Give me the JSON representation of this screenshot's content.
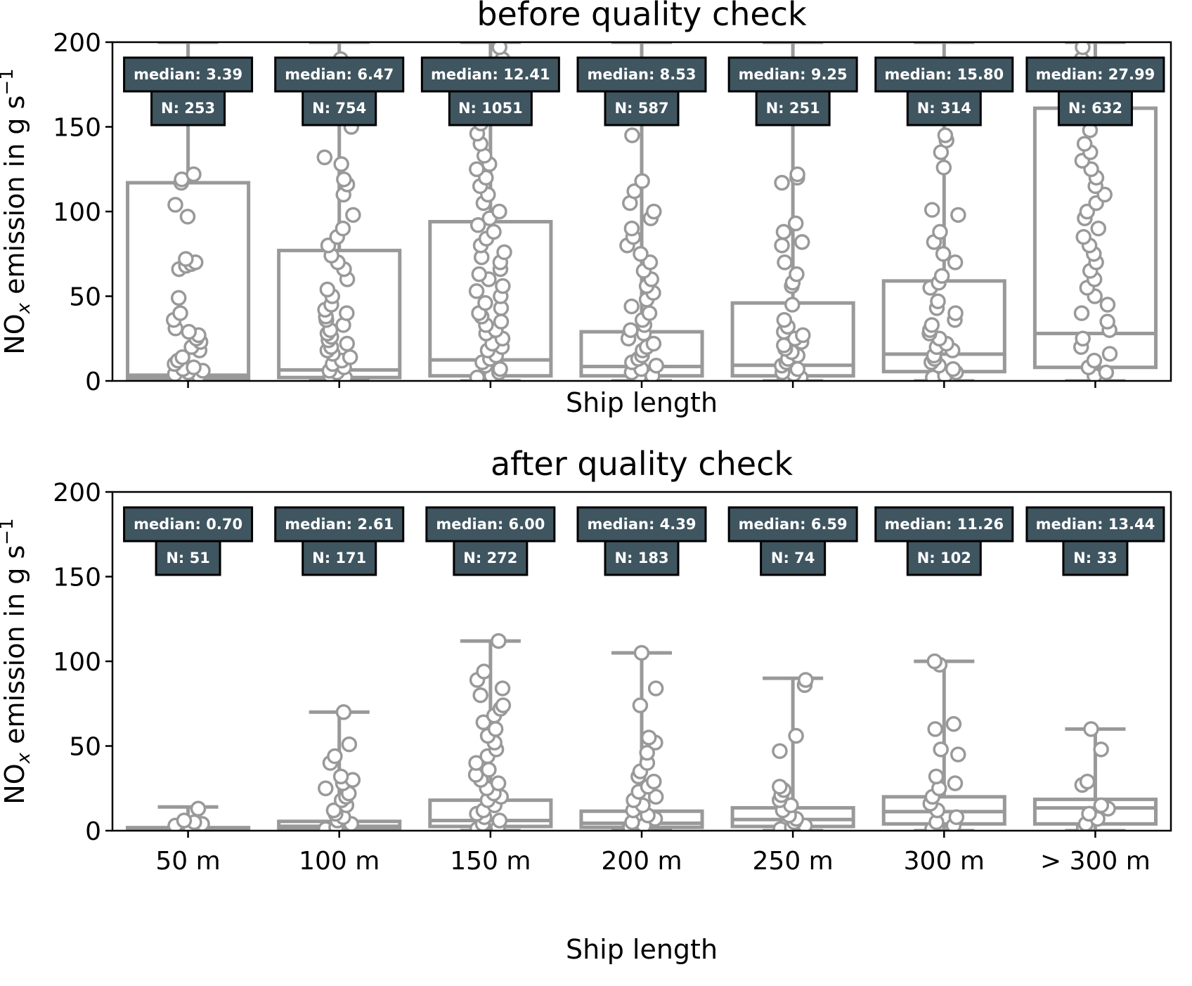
{
  "colors": {
    "box": "#999999",
    "point_fill": "#ffffff",
    "annot_bg": "#3f5560",
    "annot_text": "#ffffff",
    "axis": "#000000"
  },
  "chart_data": [
    {
      "type": "box",
      "title": "before quality check",
      "xlabel": "Ship length",
      "ylabel": "NOx emission in g s⁻¹",
      "ylim": [
        0,
        200
      ],
      "yticks": [
        "0",
        "50",
        "100",
        "150",
        "200"
      ],
      "categories": [
        "50 m",
        "100 m",
        "150 m",
        "200 m",
        "250 m",
        "300 m",
        "> 300 m"
      ],
      "show_xtick_labels": false,
      "annotations": [
        {
          "median": "median: 3.39",
          "n": "N: 253"
        },
        {
          "median": "median: 6.47",
          "n": "N: 754"
        },
        {
          "median": "median: 12.41",
          "n": "N: 1051"
        },
        {
          "median": "median: 8.53",
          "n": "N: 587"
        },
        {
          "median": "median: 9.25",
          "n": "N: 251"
        },
        {
          "median": "median: 15.80",
          "n": "N: 314"
        },
        {
          "median": "median: 27.99",
          "n": "N: 632"
        }
      ],
      "boxes": [
        {
          "q1": 1.5,
          "median": 3.39,
          "q3": 117,
          "whisker_low": 0,
          "whisker_high": 200
        },
        {
          "q1": 2,
          "median": 6.47,
          "q3": 77,
          "whisker_low": 0,
          "whisker_high": 200
        },
        {
          "q1": 3,
          "median": 12.41,
          "q3": 94,
          "whisker_low": 0,
          "whisker_high": 200
        },
        {
          "q1": 3,
          "median": 8.53,
          "q3": 29,
          "whisker_low": 0,
          "whisker_high": 200
        },
        {
          "q1": 3,
          "median": 9.25,
          "q3": 46,
          "whisker_low": 0,
          "whisker_high": 200
        },
        {
          "q1": 5.5,
          "median": 15.8,
          "q3": 59,
          "whisker_low": 0,
          "whisker_high": 200
        },
        {
          "q1": 8,
          "median": 27.99,
          "q3": 161,
          "whisker_low": 0,
          "whisker_high": 200
        }
      ],
      "points": [
        [
          1,
          2,
          3,
          4,
          5,
          6,
          7,
          8,
          10,
          12,
          14,
          18,
          20,
          23,
          25,
          27,
          29,
          31,
          36,
          40,
          49,
          66,
          68,
          69,
          70,
          72,
          97,
          104,
          117,
          119,
          122
        ],
        [
          1,
          2,
          3,
          5,
          6,
          8,
          10,
          12,
          14,
          16,
          18,
          20,
          22,
          24,
          26,
          28,
          30,
          33,
          36,
          38,
          40,
          42,
          45,
          50,
          54,
          60,
          66,
          70,
          74,
          80,
          85,
          90,
          98,
          110,
          116,
          119,
          128,
          132,
          150,
          160,
          175,
          190
        ],
        [
          1,
          2,
          3,
          5,
          7,
          9,
          11,
          13,
          15,
          18,
          20,
          22,
          25,
          28,
          30,
          33,
          35,
          38,
          40,
          43,
          46,
          50,
          53,
          56,
          60,
          63,
          66,
          70,
          73,
          76,
          80,
          84,
          88,
          92,
          96,
          100,
          105,
          110,
          115,
          120,
          125,
          128,
          133,
          140,
          146,
          152,
          160,
          170,
          180,
          190,
          197
        ],
        [
          1,
          2,
          3,
          5,
          7,
          9,
          11,
          13,
          15,
          18,
          20,
          22,
          25,
          28,
          30,
          33,
          36,
          40,
          44,
          48,
          52,
          56,
          60,
          65,
          70,
          75,
          80,
          85,
          90,
          96,
          100,
          105,
          112,
          118,
          145,
          160,
          175
        ],
        [
          1,
          2,
          3,
          4,
          5,
          7,
          9,
          11,
          13,
          15,
          17,
          19,
          21,
          23,
          25,
          27,
          29,
          32,
          36,
          45,
          56,
          58,
          63,
          70,
          80,
          82,
          88,
          93,
          117,
          120,
          122
        ],
        [
          1,
          2,
          3,
          5,
          7,
          9,
          11,
          13,
          15,
          18,
          20,
          22,
          25,
          28,
          30,
          33,
          36,
          40,
          43,
          47,
          55,
          58,
          62,
          70,
          75,
          82,
          88,
          98,
          101,
          126,
          135,
          142,
          145,
          160
        ],
        [
          1,
          3,
          5,
          8,
          12,
          16,
          20,
          25,
          30,
          35,
          40,
          45,
          50,
          55,
          60,
          65,
          70,
          75,
          80,
          85,
          90,
          96,
          100,
          105,
          110,
          115,
          120,
          125,
          130,
          135,
          140,
          148,
          155,
          160,
          170,
          180,
          190,
          197
        ]
      ]
    },
    {
      "type": "box",
      "title": "after quality check",
      "xlabel": "Ship length",
      "ylabel": "NOx emission in g s⁻¹",
      "ylim": [
        0,
        200
      ],
      "yticks": [
        "0",
        "50",
        "100",
        "150",
        "200"
      ],
      "categories": [
        "50 m",
        "100 m",
        "150 m",
        "200 m",
        "250 m",
        "300 m",
        "> 300 m"
      ],
      "show_xtick_labels": true,
      "annotations": [
        {
          "median": "median: 0.70",
          "n": "N: 51"
        },
        {
          "median": "median: 2.61",
          "n": "N: 171"
        },
        {
          "median": "median: 6.00",
          "n": "N: 272"
        },
        {
          "median": "median: 4.39",
          "n": "N: 183"
        },
        {
          "median": "median: 6.59",
          "n": "N: 74"
        },
        {
          "median": "median: 11.26",
          "n": "N: 102"
        },
        {
          "median": "median: 13.44",
          "n": "N: 33"
        }
      ],
      "boxes": [
        {
          "q1": 0.2,
          "median": 0.7,
          "q3": 1.8,
          "whisker_low": 0,
          "whisker_high": 14
        },
        {
          "q1": 0.8,
          "median": 2.61,
          "q3": 5.5,
          "whisker_low": 0,
          "whisker_high": 70
        },
        {
          "q1": 2.5,
          "median": 6.0,
          "q3": 18,
          "whisker_low": 0,
          "whisker_high": 112
        },
        {
          "q1": 2,
          "median": 4.39,
          "q3": 11.5,
          "whisker_low": 0,
          "whisker_high": 105
        },
        {
          "q1": 2.5,
          "median": 6.59,
          "q3": 13.5,
          "whisker_low": 0,
          "whisker_high": 90
        },
        {
          "q1": 4,
          "median": 11.26,
          "q3": 20,
          "whisker_low": 0,
          "whisker_high": 100
        },
        {
          "q1": 4,
          "median": 13.44,
          "q3": 18.5,
          "whisker_low": 0,
          "whisker_high": 60
        }
      ],
      "points": [
        [
          0.5,
          1,
          2,
          3,
          4,
          5,
          6,
          13
        ],
        [
          1,
          2,
          4,
          6,
          8,
          10,
          12,
          15,
          18,
          20,
          22,
          25,
          28,
          30,
          32,
          40,
          44,
          51,
          70
        ],
        [
          1,
          2,
          4,
          6,
          8,
          10,
          12,
          15,
          18,
          20,
          22,
          25,
          28,
          30,
          33,
          36,
          40,
          44,
          48,
          52,
          56,
          60,
          64,
          68,
          72,
          74,
          80,
          84,
          89,
          94,
          112
        ],
        [
          1,
          2,
          3,
          5,
          7,
          9,
          12,
          15,
          18,
          20,
          23,
          26,
          29,
          32,
          35,
          40,
          46,
          52,
          55,
          74,
          84,
          105
        ],
        [
          1,
          2,
          3,
          5,
          7,
          9,
          12,
          15,
          18,
          21,
          24,
          26,
          47,
          56,
          86,
          89
        ],
        [
          1,
          3,
          5,
          8,
          12,
          16,
          20,
          25,
          28,
          32,
          45,
          48,
          60,
          63,
          98,
          100
        ],
        [
          2,
          4,
          7,
          10,
          13,
          15,
          27,
          29,
          48,
          60
        ]
      ]
    }
  ]
}
